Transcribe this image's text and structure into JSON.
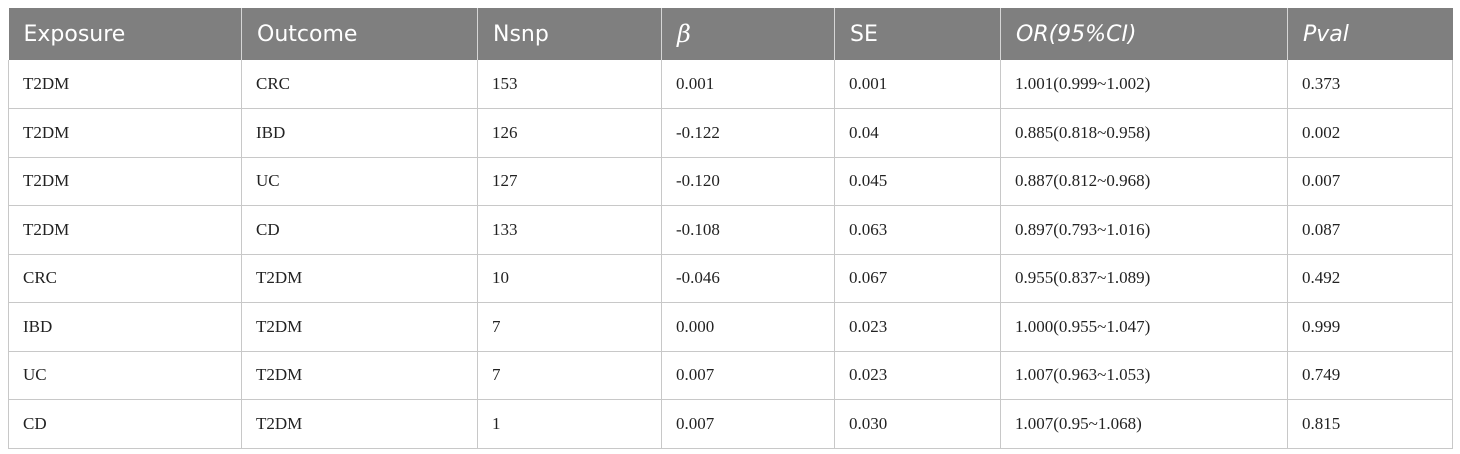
{
  "table": {
    "headers": [
      "Exposure",
      "Outcome",
      "Nsnp",
      "β",
      "SE",
      "OR(95%CI)",
      "Pval"
    ],
    "rows": [
      [
        "T2DM",
        "CRC",
        "153",
        "0.001",
        "0.001",
        "1.001(0.999~1.002)",
        "0.373"
      ],
      [
        "T2DM",
        "IBD",
        "126",
        "-0.122",
        "0.04",
        "0.885(0.818~0.958)",
        "0.002"
      ],
      [
        "T2DM",
        "UC",
        "127",
        "-0.120",
        "0.045",
        "0.887(0.812~0.968)",
        "0.007"
      ],
      [
        "T2DM",
        "CD",
        "133",
        "-0.108",
        "0.063",
        "0.897(0.793~1.016)",
        "0.087"
      ],
      [
        "CRC",
        "T2DM",
        "10",
        "-0.046",
        "0.067",
        "0.955(0.837~1.089)",
        "0.492"
      ],
      [
        "IBD",
        "T2DM",
        "7",
        "0.000",
        "0.023",
        "1.000(0.955~1.047)",
        "0.999"
      ],
      [
        "UC",
        "T2DM",
        "7",
        "0.007",
        "0.023",
        "1.007(0.963~1.053)",
        "0.749"
      ],
      [
        "CD",
        "T2DM",
        "1",
        "0.007",
        "0.030",
        "1.007(0.95~1.068)",
        "0.815"
      ]
    ]
  },
  "colors": {
    "header_background": "#7f7f7f",
    "header_text": "#ffffff",
    "grid_line": "#c8c8c8"
  }
}
